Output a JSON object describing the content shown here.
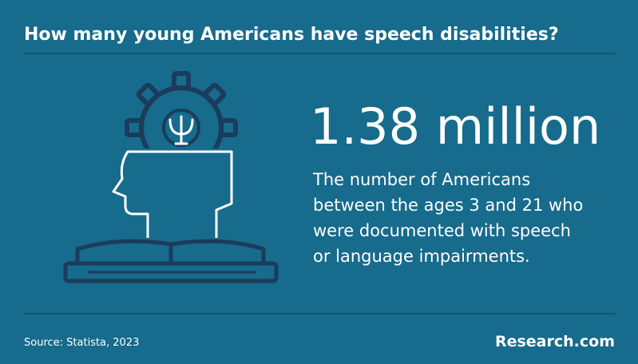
{
  "header": {
    "title": "How many young Americans have speech disabilities?"
  },
  "stat": {
    "headline": "1.38 million",
    "description": [
      "The number of Americans",
      "between the ages 3 and 21 who",
      "were documented with speech",
      "or language impairments."
    ]
  },
  "footer": {
    "source": "Source: Statista, 2023",
    "brand": "Research.com"
  }
}
